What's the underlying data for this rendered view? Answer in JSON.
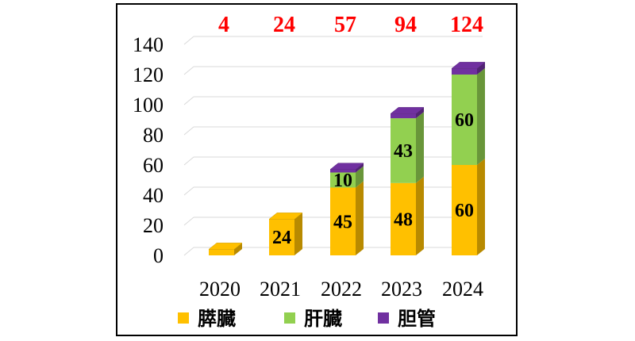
{
  "chart_data": {
    "type": "bar",
    "stacked": true,
    "style": "3d-column",
    "categories": [
      "2020",
      "2021",
      "2022",
      "2023",
      "2024"
    ],
    "series": [
      {
        "name": "膵臓",
        "values": [
          4,
          24,
          45,
          48,
          60
        ],
        "color": "#FFC000",
        "data_labels": [
          null,
          "24",
          "45",
          "48",
          "60"
        ]
      },
      {
        "name": "肝臓",
        "values": [
          0,
          0,
          10,
          43,
          60
        ],
        "color": "#92D050",
        "data_labels": [
          null,
          null,
          "10",
          "43",
          "60"
        ]
      },
      {
        "name": "胆管",
        "values": [
          0,
          0,
          2,
          3,
          4
        ],
        "color": "#7030A0",
        "data_labels": [
          null,
          null,
          null,
          null,
          null
        ]
      }
    ],
    "totals": [
      "4",
      "24",
      "57",
      "94",
      "124"
    ],
    "total_color": "#FF0000",
    "ylim": [
      0,
      140
    ],
    "yticks": [
      "0",
      "20",
      "40",
      "60",
      "80",
      "100",
      "120",
      "140"
    ],
    "grid": true,
    "legend": "bottom",
    "title": "",
    "xlabel": "",
    "ylabel": ""
  }
}
